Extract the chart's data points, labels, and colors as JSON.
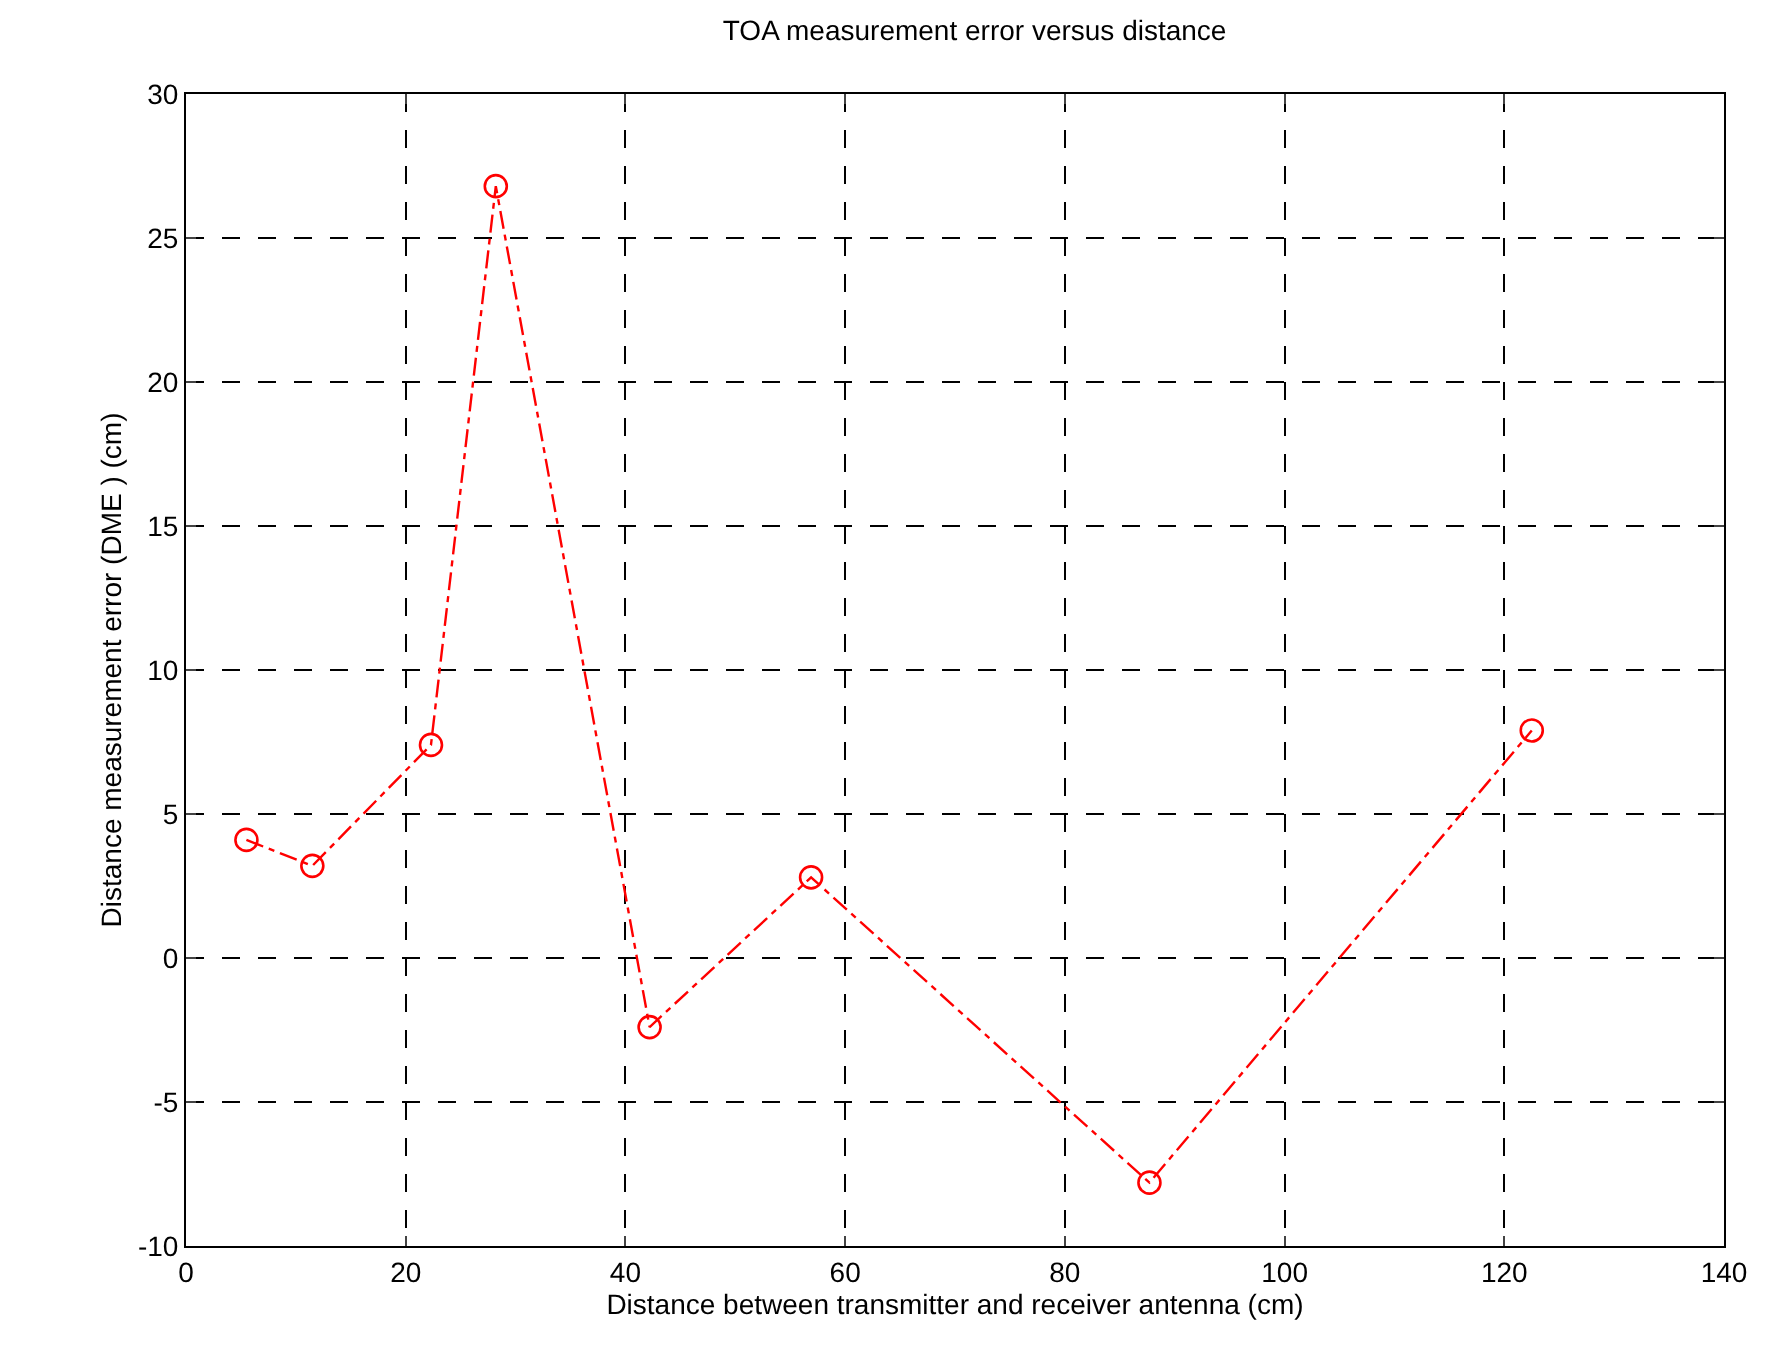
{
  "chart_data": {
    "type": "line",
    "title": "TOA measurement error versus distance",
    "xlabel": "Distance between transmitter and receiver antenna (cm)",
    "ylabel": "Distance measurement error (DME ) (cm)",
    "x": [
      5.5,
      11.5,
      22.3,
      28.2,
      42.2,
      56.9,
      87.7,
      122.5
    ],
    "series": [
      {
        "color": "#ff0000",
        "values": [
          4.1,
          3.2,
          7.4,
          26.8,
          -2.4,
          2.8,
          -7.8,
          7.9
        ]
      }
    ],
    "xlim": [
      0,
      140
    ],
    "xticks": [
      0,
      20,
      40,
      60,
      80,
      100,
      120,
      140
    ],
    "ylim": [
      -10,
      30
    ],
    "yticks": [
      -10,
      -5,
      0,
      5,
      10,
      15,
      20,
      25,
      30
    ],
    "grid": true,
    "marker": "circle",
    "line_style": "dashdot"
  }
}
